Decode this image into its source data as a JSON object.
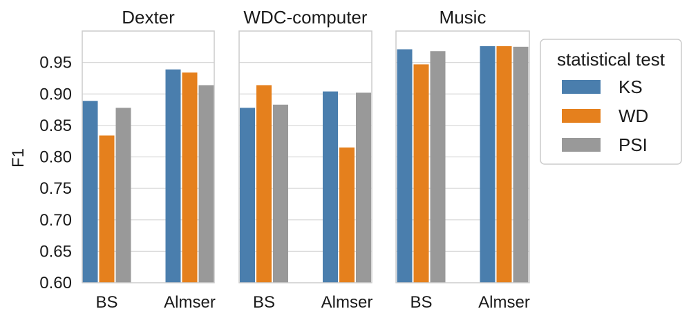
{
  "chart_data": {
    "type": "bar",
    "ylabel": "F1",
    "ylim": [
      0.6,
      1.0
    ],
    "yticks": [
      0.6,
      0.65,
      0.7,
      0.75,
      0.8,
      0.85,
      0.9,
      0.95
    ],
    "ytick_labels": [
      "0.60",
      "0.65",
      "0.70",
      "0.75",
      "0.80",
      "0.85",
      "0.90",
      "0.95"
    ],
    "grid": true,
    "legend": {
      "title": "statistical test",
      "placement": "right",
      "entries": [
        {
          "name": "KS",
          "color": "#4a7ead"
        },
        {
          "name": "WD",
          "color": "#e5801d"
        },
        {
          "name": "PSI",
          "color": "#999999"
        }
      ]
    },
    "panels": [
      {
        "title": "Dexter",
        "categories": [
          "BS",
          "Almser"
        ],
        "series": [
          {
            "name": "KS",
            "values": [
              0.889,
              0.939
            ]
          },
          {
            "name": "WD",
            "values": [
              0.834,
              0.934
            ]
          },
          {
            "name": "PSI",
            "values": [
              0.878,
              0.914
            ]
          }
        ]
      },
      {
        "title": "WDC-computer",
        "categories": [
          "BS",
          "Almser"
        ],
        "series": [
          {
            "name": "KS",
            "values": [
              0.878,
              0.904
            ]
          },
          {
            "name": "WD",
            "values": [
              0.914,
              0.815
            ]
          },
          {
            "name": "PSI",
            "values": [
              0.883,
              0.902
            ]
          }
        ]
      },
      {
        "title": "Music",
        "categories": [
          "BS",
          "Almser"
        ],
        "series": [
          {
            "name": "KS",
            "values": [
              0.971,
              0.976
            ]
          },
          {
            "name": "WD",
            "values": [
              0.947,
              0.976
            ]
          },
          {
            "name": "PSI",
            "values": [
              0.968,
              0.975
            ]
          }
        ]
      }
    ]
  }
}
